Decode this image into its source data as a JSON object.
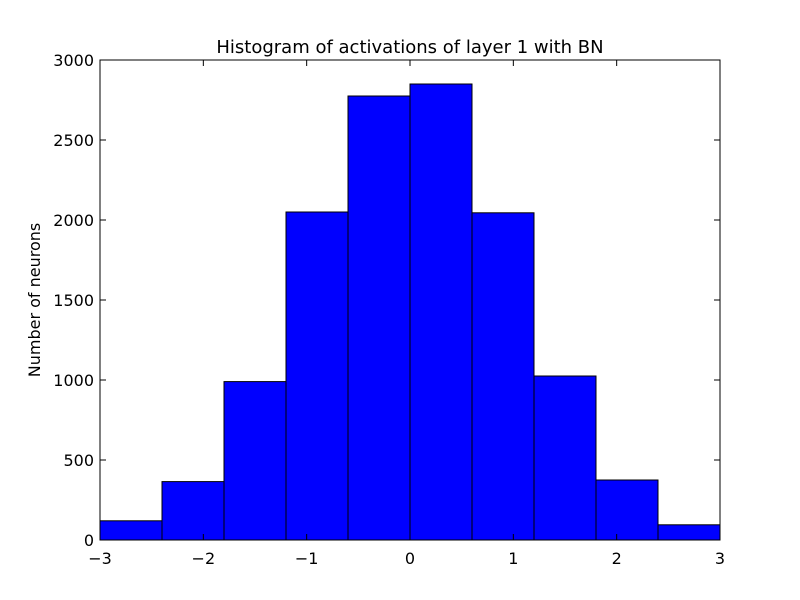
{
  "chart_data": {
    "type": "bar",
    "title": "Histogram of activations of layer 1  with BN",
    "xlabel": "",
    "ylabel": "Number of neurons",
    "bin_edges": [
      -3.0,
      -2.4,
      -1.8,
      -1.2,
      -0.6,
      0.0,
      0.6,
      1.2,
      1.8,
      2.4,
      3.0
    ],
    "values": [
      120,
      365,
      990,
      2050,
      2775,
      2850,
      2045,
      1025,
      375,
      95
    ],
    "xlim": [
      -3,
      3
    ],
    "ylim": [
      0,
      3000
    ],
    "x_ticks": [
      -3,
      -2,
      -1,
      0,
      1,
      2,
      3
    ],
    "x_tick_labels": [
      "−3",
      "−2",
      "−1",
      "0",
      "1",
      "2",
      "3"
    ],
    "y_ticks": [
      0,
      500,
      1000,
      1500,
      2000,
      2500,
      3000
    ],
    "y_tick_labels": [
      "0",
      "500",
      "1000",
      "1500",
      "2000",
      "2500",
      "3000"
    ],
    "bar_color": "#0000ff",
    "edge_color": "#000000",
    "grid": false,
    "legend": "none"
  }
}
